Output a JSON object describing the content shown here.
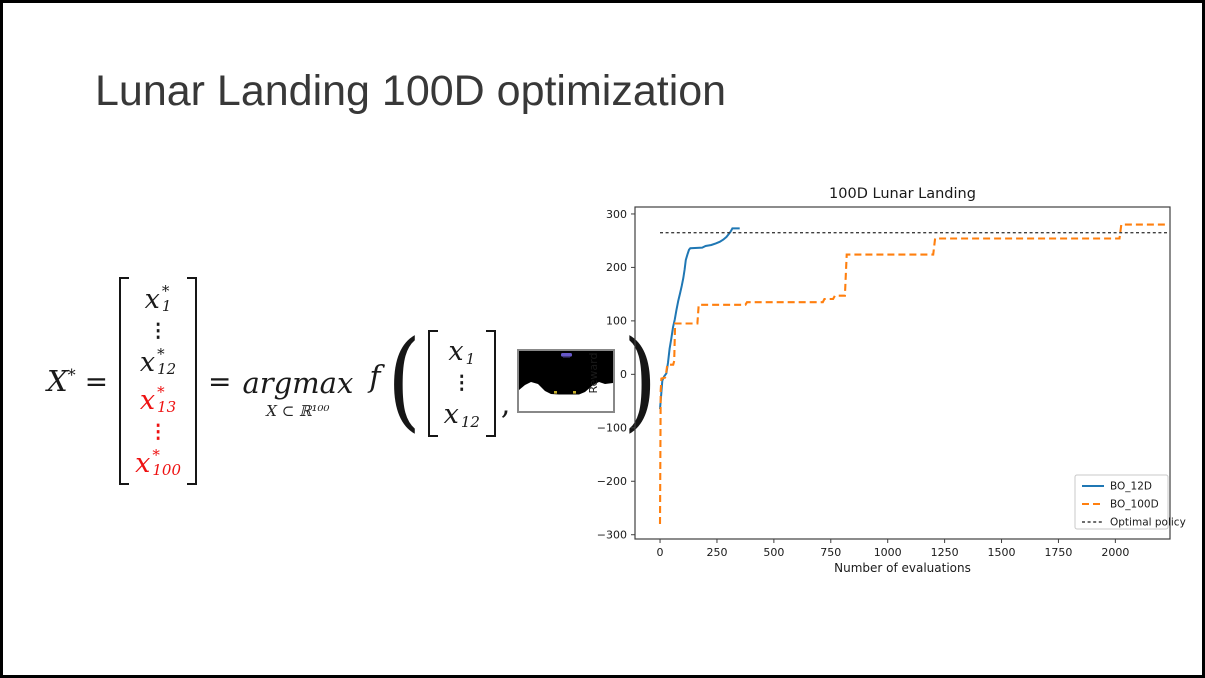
{
  "slide": {
    "title": "Lunar Landing 100D optimization"
  },
  "formula": {
    "lhs_base": "X",
    "lhs_sup": "*",
    "equals": "=",
    "matrix_full": {
      "rows": [
        {
          "base": "x",
          "sub": "1",
          "sup": "*",
          "color": "black"
        },
        {
          "base": "⋮",
          "color": "black"
        },
        {
          "base": "x",
          "sub": "12",
          "sup": "*",
          "color": "black"
        },
        {
          "base": "x",
          "sub": "13",
          "sup": "*",
          "color": "red"
        },
        {
          "base": "⋮",
          "color": "red"
        },
        {
          "base": "x",
          "sub": "100",
          "sup": "*",
          "color": "red"
        }
      ]
    },
    "argmax": {
      "operator": "argmax",
      "constraint": "X ⊂ ℝ¹⁰⁰"
    },
    "function_name": "f",
    "open_paren": "(",
    "matrix_small": {
      "rows": [
        {
          "base": "x",
          "sub": "1"
        },
        {
          "base": "⋮"
        },
        {
          "base": "x",
          "sub": "12"
        }
      ]
    },
    "comma": ",",
    "close_paren": ")",
    "accent_red": "#ee1111"
  },
  "lander_thumbnail": {
    "sky_color": "#000000",
    "ground_color": "#ffffff",
    "lander_color": "#6657c8",
    "flag_color": "#c9b12b",
    "border_color": "#888888"
  },
  "chart_data": {
    "type": "line",
    "title": "100D Lunar Landing",
    "xlabel": "Number of evaluations",
    "ylabel": "Reward",
    "xlim": [
      -110,
      2240
    ],
    "ylim": [
      -308,
      313
    ],
    "xticks": [
      0,
      250,
      500,
      750,
      1000,
      1250,
      1500,
      1750,
      2000
    ],
    "yticks": [
      -300,
      -200,
      -100,
      0,
      100,
      200,
      300
    ],
    "grid": false,
    "legend_position": "lower right",
    "series": [
      {
        "name": "BO_12D",
        "color": "#1f77b4",
        "style": "solid",
        "linewidth": 2,
        "points": [
          [
            0,
            -65
          ],
          [
            5,
            -38
          ],
          [
            10,
            -12
          ],
          [
            18,
            -4
          ],
          [
            28,
            2
          ],
          [
            35,
            22
          ],
          [
            42,
            48
          ],
          [
            50,
            68
          ],
          [
            57,
            88
          ],
          [
            65,
            103
          ],
          [
            72,
            120
          ],
          [
            80,
            138
          ],
          [
            88,
            152
          ],
          [
            95,
            165
          ],
          [
            102,
            180
          ],
          [
            108,
            196
          ],
          [
            113,
            214
          ],
          [
            120,
            224
          ],
          [
            127,
            233
          ],
          [
            133,
            236
          ],
          [
            185,
            237
          ],
          [
            200,
            240
          ],
          [
            225,
            242
          ],
          [
            245,
            245
          ],
          [
            262,
            248
          ],
          [
            278,
            252
          ],
          [
            292,
            257
          ],
          [
            303,
            263
          ],
          [
            310,
            267
          ],
          [
            318,
            273
          ],
          [
            350,
            273
          ]
        ]
      },
      {
        "name": "BO_100D",
        "color": "#ff7f0e",
        "style": "dashed",
        "linewidth": 2.1,
        "points": [
          [
            0,
            -280
          ],
          [
            3,
            -30
          ],
          [
            6,
            -8
          ],
          [
            22,
            -6
          ],
          [
            27,
            3
          ],
          [
            32,
            18
          ],
          [
            58,
            18
          ],
          [
            62,
            25
          ],
          [
            66,
            95
          ],
          [
            164,
            95
          ],
          [
            170,
            130
          ],
          [
            375,
            130
          ],
          [
            382,
            135
          ],
          [
            715,
            135
          ],
          [
            722,
            141
          ],
          [
            760,
            141
          ],
          [
            768,
            147
          ],
          [
            812,
            147
          ],
          [
            820,
            224
          ],
          [
            1200,
            224
          ],
          [
            1208,
            254
          ],
          [
            2018,
            254
          ],
          [
            2026,
            280
          ],
          [
            2235,
            280
          ]
        ]
      },
      {
        "name": "Optimal policy",
        "color": "#3f3f3f",
        "style": "dotted",
        "linewidth": 1.4,
        "points": [
          [
            0,
            265
          ],
          [
            2235,
            265
          ]
        ]
      }
    ]
  }
}
